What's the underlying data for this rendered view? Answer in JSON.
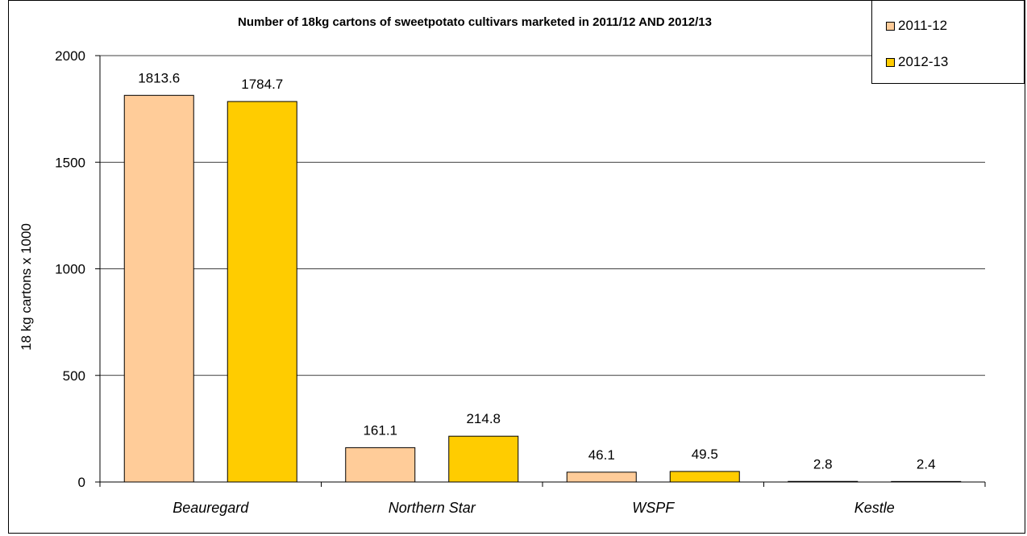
{
  "chart_data": {
    "type": "bar",
    "title": "Number of 18kg cartons of sweetpotato cultivars marketed in  2011/12 AND 2012/13",
    "xlabel": "",
    "ylabel": "18 kg cartons x 1000",
    "categories": [
      "Beauregard",
      "Northern Star",
      "WSPF",
      "Kestle"
    ],
    "series": [
      {
        "name": "2011-12",
        "values": [
          1813.6,
          161.1,
          46.1,
          2.8
        ],
        "color": "#FFCC99"
      },
      {
        "name": "2012-13",
        "values": [
          1784.7,
          214.8,
          49.5,
          2.4
        ],
        "color": "#FFCC00"
      }
    ],
    "ylim": [
      0,
      2000
    ],
    "yticks": [
      0,
      500,
      1000,
      1500,
      2000
    ],
    "grid": true,
    "legend_position": "top-right"
  }
}
